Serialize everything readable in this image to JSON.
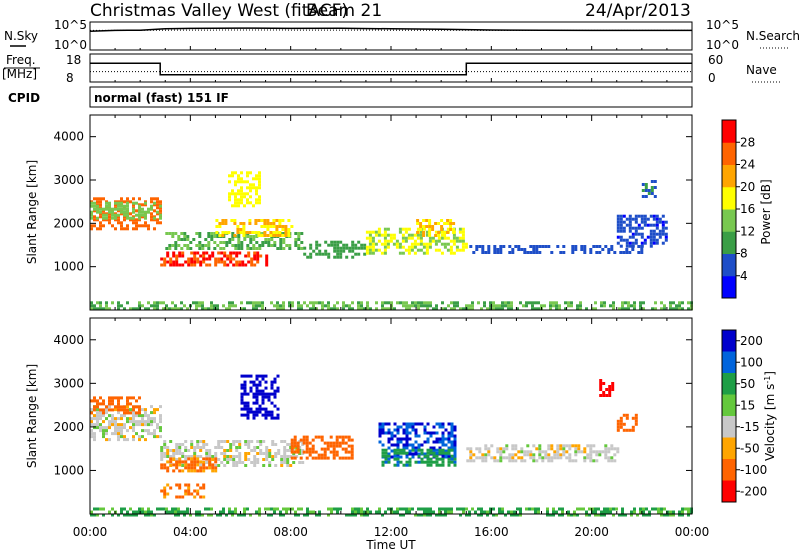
{
  "header": {
    "title": "Christmas Valley West (fitACF)",
    "beam": "Beam 21",
    "date": "24/Apr/2013"
  },
  "strips": {
    "nsky_label": "N.Sky",
    "nsky_ticks": [
      "10^5",
      "10^0"
    ],
    "nsearch_label": "N.Search",
    "freq_label_1": "Freq.",
    "freq_label_2": "[MHz]",
    "freq_ticks": [
      "18",
      "8"
    ],
    "nave_label": "Nave",
    "nave_ticks": [
      "60",
      "0"
    ],
    "cpid_label": "CPID",
    "cpid_value": "normal (fast) 151 IF"
  },
  "colors": {
    "power_scale": [
      "#0000ff",
      "#1e4ec8",
      "#3a9e46",
      "#78c850",
      "#ffff00",
      "#ffa500",
      "#ff6400",
      "#ff0000"
    ],
    "velocity_scale": [
      "#0000cc",
      "#0064dc",
      "#1e9e46",
      "#64c83c",
      "#c8c8c8",
      "#ffa500",
      "#ff6400",
      "#ff0000"
    ],
    "ground_scatter": "#bebebe"
  },
  "chart_data": [
    {
      "type": "line",
      "title": "N.Sky / N.Search",
      "ylabel": "N.Sky",
      "yscale": "log",
      "yticks": [
        "10^5",
        "10^0"
      ],
      "x_unit": "hours UT",
      "series": [
        {
          "name": "N.Sky",
          "x": [
            0,
            1,
            2,
            3,
            4,
            6,
            8,
            10,
            12,
            14,
            16,
            18,
            20,
            22,
            24
          ],
          "y": [
            5000,
            8000,
            9000,
            20000,
            25000,
            30000,
            25000,
            28000,
            20000,
            15000,
            10000,
            9000,
            8000,
            8000,
            8000
          ]
        },
        {
          "name": "N.Search",
          "x": [
            0,
            6,
            12,
            18,
            24
          ],
          "y": [
            8000,
            10000,
            9000,
            8000,
            8000
          ]
        }
      ]
    },
    {
      "type": "line",
      "title": "Freq. / Nave",
      "series": [
        {
          "name": "Freq.",
          "unit": "MHz",
          "x": [
            0,
            2.8,
            2.8,
            15,
            15,
            24
          ],
          "y": [
            15,
            15,
            10.2,
            10.2,
            15,
            15
          ],
          "yticks": [
            18,
            8
          ]
        },
        {
          "name": "Nave",
          "x": [
            0,
            24
          ],
          "y": [
            21,
            21
          ],
          "yticks": [
            60,
            0
          ]
        }
      ]
    },
    {
      "type": "heatmap",
      "title": "Power",
      "xlabel": "Time UT",
      "ylabel": "Slant Range [km]",
      "xticks": [
        "00:00",
        "04:00",
        "08:00",
        "12:00",
        "16:00",
        "20:00",
        "00:00"
      ],
      "xlim_hours": [
        0,
        24
      ],
      "ylim": [
        0,
        4500
      ],
      "yticks": [
        1000,
        2000,
        3000,
        4000
      ],
      "colorbar": {
        "label": "Power [dB]",
        "ticks": [
          "4",
          "8",
          "12",
          "16",
          "20",
          "24",
          "28"
        ],
        "range": [
          0,
          32
        ]
      },
      "scatter_regions": [
        {
          "t": [
            0,
            2.8
          ],
          "r": [
            1900,
            2600
          ],
          "value": 26
        },
        {
          "t": [
            0,
            2.8
          ],
          "r": [
            2100,
            2500
          ],
          "value": 14
        },
        {
          "t": [
            2.8,
            7.0
          ],
          "r": [
            1050,
            1350
          ],
          "value": 28
        },
        {
          "t": [
            3.0,
            8.5
          ],
          "r": [
            1400,
            1800
          ],
          "value": 12
        },
        {
          "t": [
            5.0,
            8.0
          ],
          "r": [
            1700,
            2100
          ],
          "value": 20
        },
        {
          "t": [
            5.5,
            6.8
          ],
          "r": [
            2400,
            3200
          ],
          "value": 18
        },
        {
          "t": [
            8.5,
            11.0
          ],
          "r": [
            1200,
            1600
          ],
          "value": 10
        },
        {
          "t": [
            11.0,
            15.0
          ],
          "r": [
            1300,
            1900
          ],
          "value": 16
        },
        {
          "t": [
            13.0,
            14.5
          ],
          "r": [
            1700,
            2100
          ],
          "value": 20
        },
        {
          "t": [
            15.0,
            22.0
          ],
          "r": [
            1300,
            1500
          ],
          "value": 6
        },
        {
          "t": [
            21.0,
            23.0
          ],
          "r": [
            1500,
            2200
          ],
          "value": 5
        },
        {
          "t": [
            22.0,
            22.5
          ],
          "r": [
            2600,
            3000
          ],
          "value": 8
        },
        {
          "t": [
            0,
            24
          ],
          "r": [
            0,
            200
          ],
          "value": 12
        }
      ]
    },
    {
      "type": "heatmap",
      "title": "Velocity",
      "xlabel": "Time UT",
      "ylabel": "Slant Range [km]",
      "xticks": [
        "00:00",
        "04:00",
        "08:00",
        "12:00",
        "16:00",
        "20:00",
        "00:00"
      ],
      "xlim_hours": [
        0,
        24
      ],
      "ylim": [
        0,
        4500
      ],
      "yticks": [
        1000,
        2000,
        3000,
        4000
      ],
      "colorbar": {
        "label": "Velocity [m s^-1]",
        "ticks": [
          "200",
          "100",
          "50",
          "15",
          "-15",
          "-50",
          "-100",
          "-200"
        ],
        "range": [
          -250,
          250
        ]
      },
      "scatter_regions": [
        {
          "t": [
            0,
            2.8
          ],
          "r": [
            1700,
            2500
          ],
          "value": 0
        },
        {
          "t": [
            0,
            2.0
          ],
          "r": [
            2300,
            2700
          ],
          "value": -100
        },
        {
          "t": [
            2.8,
            8.5
          ],
          "r": [
            1100,
            1700
          ],
          "value": 0
        },
        {
          "t": [
            2.8,
            5.0
          ],
          "r": [
            1000,
            1300
          ],
          "value": -60
        },
        {
          "t": [
            6.0,
            7.5
          ],
          "r": [
            2200,
            3200
          ],
          "value": 200
        },
        {
          "t": [
            8.0,
            10.5
          ],
          "r": [
            1300,
            1800
          ],
          "value": -80
        },
        {
          "t": [
            11.5,
            14.5
          ],
          "r": [
            1300,
            2100
          ],
          "value": 150
        },
        {
          "t": [
            11.5,
            14.5
          ],
          "r": [
            1100,
            1500
          ],
          "value": 60
        },
        {
          "t": [
            15.0,
            21.0
          ],
          "r": [
            1200,
            1600
          ],
          "value": 0
        },
        {
          "t": [
            20.3,
            20.8
          ],
          "r": [
            2700,
            3100
          ],
          "value": -200
        },
        {
          "t": [
            21.0,
            21.8
          ],
          "r": [
            1900,
            2300
          ],
          "value": -120
        },
        {
          "t": [
            2.8,
            4.5
          ],
          "r": [
            400,
            700
          ],
          "value": -60
        },
        {
          "t": [
            0,
            24
          ],
          "r": [
            0,
            150
          ],
          "value": 40
        }
      ]
    }
  ]
}
